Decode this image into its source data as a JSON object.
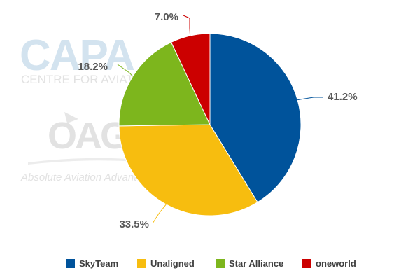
{
  "watermark": {
    "capa_logo": "CAPA",
    "capa_tagline": "CENTRE FOR AVIATION",
    "oag_logo": "OAG",
    "oag_tagline": "Absolute Aviation Advantage"
  },
  "chart_data": {
    "type": "pie",
    "title": "",
    "series": [
      {
        "name": "",
        "slices": [
          {
            "label": "SkyTeam",
            "value": 41.2,
            "display": "41.2%",
            "color": "#00539b"
          },
          {
            "label": "Unaligned",
            "value": 33.5,
            "display": "33.5%",
            "color": "#f7bd0f"
          },
          {
            "label": "Star Alliance",
            "value": 18.2,
            "display": "18.2%",
            "color": "#7db61d"
          },
          {
            "label": "oneworld",
            "value": 7.0,
            "display": "7.0%",
            "color": "#cc0000"
          }
        ]
      }
    ],
    "legend": {
      "position": "bottom",
      "entries": [
        "SkyTeam",
        "Unaligned",
        "Star Alliance",
        "oneworld"
      ]
    }
  }
}
